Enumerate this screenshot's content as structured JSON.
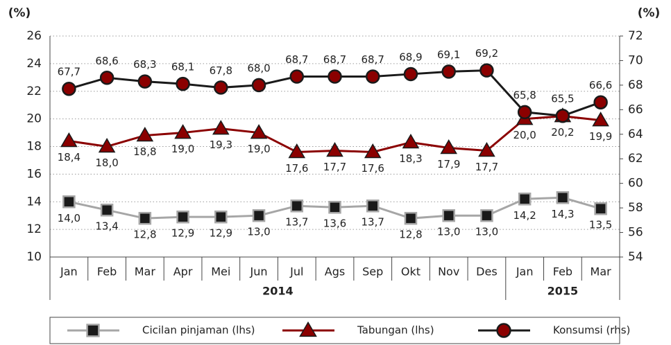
{
  "chart_data": {
    "type": "line",
    "y_label": "(%)",
    "y2_label": "(%)",
    "categories": [
      "Jan",
      "Feb",
      "Mar",
      "Apr",
      "Mei",
      "Jun",
      "Jul",
      "Ags",
      "Sep",
      "Okt",
      "Nov",
      "Des",
      "Jan",
      "Feb",
      "Mar"
    ],
    "groups": [
      {
        "label": "2014",
        "span": 12
      },
      {
        "label": "2015",
        "span": 3
      }
    ],
    "ylim": [
      10,
      26
    ],
    "yticks": [
      10,
      12,
      14,
      16,
      18,
      20,
      22,
      24,
      26
    ],
    "y2lim": [
      54,
      72
    ],
    "y2ticks": [
      54,
      56,
      58,
      60,
      62,
      64,
      66,
      68,
      70,
      72
    ],
    "grid": true,
    "legend": "bottom",
    "series": [
      {
        "name": "Cicilan pinjaman (lhs)",
        "color": "#a6a6a6",
        "marker": "square",
        "marker_color": "#1a1a1a",
        "label_position": "below",
        "values": [
          14.0,
          13.4,
          12.8,
          12.9,
          12.9,
          13.0,
          13.7,
          13.6,
          13.7,
          12.8,
          13.0,
          13.0,
          14.2,
          14.3,
          13.5
        ],
        "value_labels": [
          "14,0",
          "13,4",
          "12,8",
          "12,9",
          "12,9",
          "13,0",
          "13,7",
          "13,6",
          "13,7",
          "12,8",
          "13,0",
          "13,0",
          "14,2",
          "14,3",
          "13,5"
        ]
      },
      {
        "name": "Tabungan (lhs)",
        "color": "#8b0000",
        "marker": "triangle",
        "marker_color": "#8b0000",
        "label_position": "below",
        "values": [
          18.4,
          18.0,
          18.8,
          19.0,
          19.3,
          19.0,
          17.6,
          17.7,
          17.6,
          18.3,
          17.9,
          17.7,
          20.0,
          20.2,
          19.9
        ],
        "value_labels": [
          "18,4",
          "18,0",
          "18,8",
          "19,0",
          "19,3",
          "19,0",
          "17,6",
          "17,7",
          "17,6",
          "18,3",
          "17,9",
          "17,7",
          "20,0",
          "20,2",
          "19,9"
        ]
      },
      {
        "name": "Konsumsi (rhs)",
        "color": "#1a1a1a",
        "marker": "circle",
        "marker_color": "#8b0000",
        "label_position": "above",
        "axis": "y2",
        "values": [
          67.7,
          68.6,
          68.3,
          68.1,
          67.8,
          68.0,
          68.7,
          68.7,
          68.7,
          68.9,
          69.1,
          69.2,
          65.8,
          65.5,
          66.6
        ],
        "value_labels": [
          "67,7",
          "68,6",
          "68,3",
          "68,1",
          "67,8",
          "68,0",
          "68,7",
          "68,7",
          "68,7",
          "68,9",
          "69,1",
          "69,2",
          "65,8",
          "65,5",
          "66,6"
        ]
      }
    ]
  }
}
